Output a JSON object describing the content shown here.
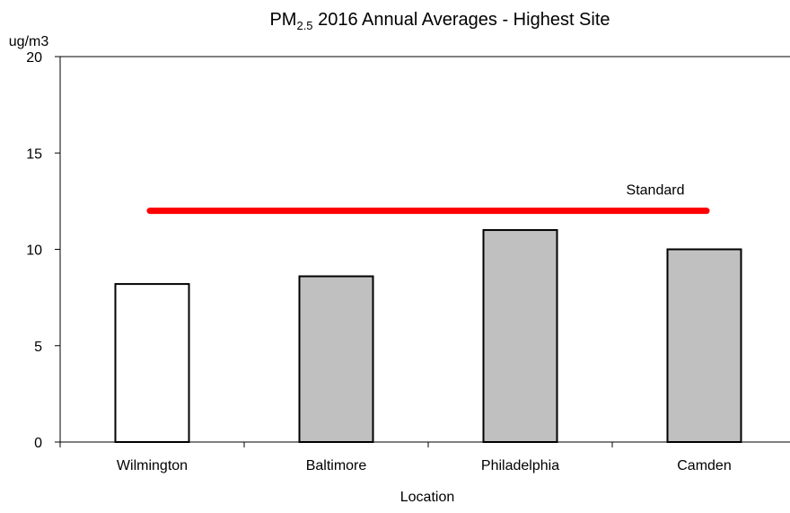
{
  "chart_data": {
    "type": "bar",
    "title": {
      "prefix": "PM",
      "subscript": "2.5",
      "suffix": " 2016 Annual Averages - Highest Site"
    },
    "xlabel": "Location",
    "ylabel": "ug/m3",
    "ylim": [
      0,
      20
    ],
    "yticks": [
      0,
      5,
      10,
      15,
      20
    ],
    "categories": [
      "Wilmington",
      "Baltimore",
      "Philadelphia",
      "Camden"
    ],
    "values": [
      8.2,
      8.6,
      11.0,
      10.0
    ],
    "bar_colors": [
      "#ffffff",
      "#c0c0c0",
      "#c0c0c0",
      "#c0c0c0"
    ],
    "bar_stroke": "#000000",
    "standard": {
      "label": "Standard",
      "value": 12,
      "color": "#ff0000"
    },
    "grid": false,
    "legend": "none"
  }
}
